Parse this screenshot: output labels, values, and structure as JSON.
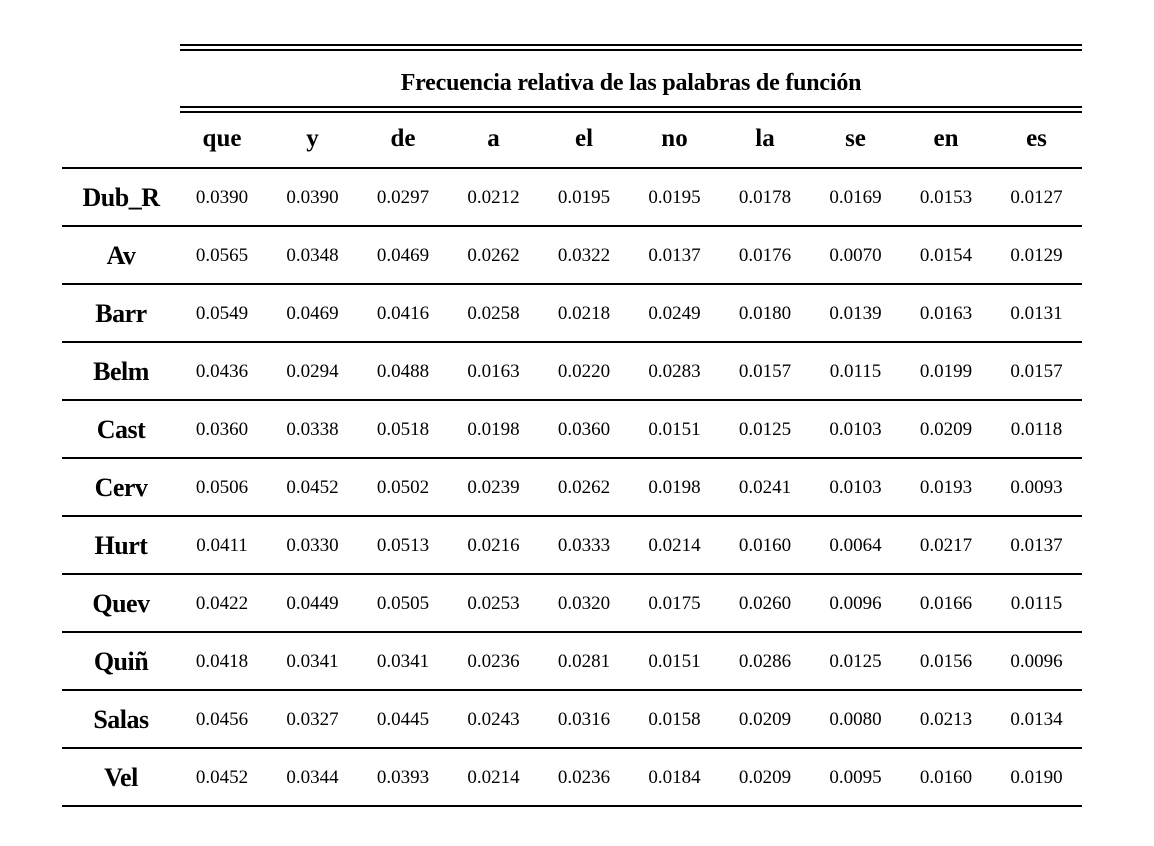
{
  "table": {
    "caption": "Frecuencia relativa de las palabras de función",
    "columns": [
      "que",
      "y",
      "de",
      "a",
      "el",
      "no",
      "la",
      "se",
      "en",
      "es"
    ],
    "rows": [
      {
        "label": "Dub_R",
        "values": [
          "0.0390",
          "0.0390",
          "0.0297",
          "0.0212",
          "0.0195",
          "0.0195",
          "0.0178",
          "0.0169",
          "0.0153",
          "0.0127"
        ]
      },
      {
        "label": "Av",
        "values": [
          "0.0565",
          "0.0348",
          "0.0469",
          "0.0262",
          "0.0322",
          "0.0137",
          "0.0176",
          "0.0070",
          "0.0154",
          "0.0129"
        ]
      },
      {
        "label": "Barr",
        "values": [
          "0.0549",
          "0.0469",
          "0.0416",
          "0.0258",
          "0.0218",
          "0.0249",
          "0.0180",
          "0.0139",
          "0.0163",
          "0.0131"
        ]
      },
      {
        "label": "Belm",
        "values": [
          "0.0436",
          "0.0294",
          "0.0488",
          "0.0163",
          "0.0220",
          "0.0283",
          "0.0157",
          "0.0115",
          "0.0199",
          "0.0157"
        ]
      },
      {
        "label": "Cast",
        "values": [
          "0.0360",
          "0.0338",
          "0.0518",
          "0.0198",
          "0.0360",
          "0.0151",
          "0.0125",
          "0.0103",
          "0.0209",
          "0.0118"
        ]
      },
      {
        "label": "Cerv",
        "values": [
          "0.0506",
          "0.0452",
          "0.0502",
          "0.0239",
          "0.0262",
          "0.0198",
          "0.0241",
          "0.0103",
          "0.0193",
          "0.0093"
        ]
      },
      {
        "label": "Hurt",
        "values": [
          "0.0411",
          "0.0330",
          "0.0513",
          "0.0216",
          "0.0333",
          "0.0214",
          "0.0160",
          "0.0064",
          "0.0217",
          "0.0137"
        ]
      },
      {
        "label": "Quev",
        "values": [
          "0.0422",
          "0.0449",
          "0.0505",
          "0.0253",
          "0.0320",
          "0.0175",
          "0.0260",
          "0.0096",
          "0.0166",
          "0.0115"
        ]
      },
      {
        "label": "Quiñ",
        "values": [
          "0.0418",
          "0.0341",
          "0.0341",
          "0.0236",
          "0.0281",
          "0.0151",
          "0.0286",
          "0.0125",
          "0.0156",
          "0.0096"
        ]
      },
      {
        "label": "Salas",
        "values": [
          "0.0456",
          "0.0327",
          "0.0445",
          "0.0243",
          "0.0316",
          "0.0158",
          "0.0209",
          "0.0080",
          "0.0213",
          "0.0134"
        ]
      },
      {
        "label": "Vel",
        "values": [
          "0.0452",
          "0.0344",
          "0.0393",
          "0.0214",
          "0.0236",
          "0.0184",
          "0.0209",
          "0.0095",
          "0.0160",
          "0.0190"
        ]
      }
    ]
  }
}
